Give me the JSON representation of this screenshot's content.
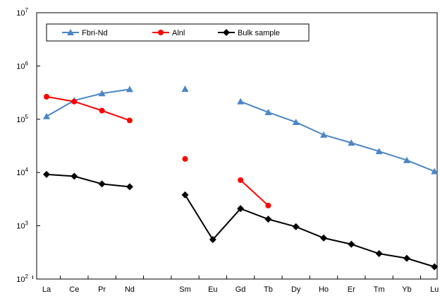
{
  "chart_data": {
    "type": "line",
    "y_scale": "log",
    "ylim": [
      100,
      10000000
    ],
    "y_ticks": [
      {
        "value": 100,
        "base": "10",
        "exp": "2"
      },
      {
        "value": 1000,
        "base": "10",
        "exp": "3"
      },
      {
        "value": 10000,
        "base": "10",
        "exp": "4"
      },
      {
        "value": 100000,
        "base": "10",
        "exp": "5"
      },
      {
        "value": 1000000,
        "base": "10",
        "exp": "6"
      },
      {
        "value": 10000000,
        "base": "10",
        "exp": "7"
      }
    ],
    "categories": [
      "La",
      "Ce",
      "Pr",
      "Nd",
      "",
      "Sm",
      "Eu",
      "Gd",
      "Tb",
      "Dy",
      "Ho",
      "Er",
      "Tm",
      "Yb",
      "Lu"
    ],
    "grid": false,
    "legend_position": "top-left",
    "series": [
      {
        "name": "Fbri-Nd",
        "color": "#4a86c8",
        "marker": "triangle",
        "values": [
          113000,
          225000,
          305000,
          365000,
          null,
          370000,
          null,
          215000,
          135000,
          88000,
          51000,
          36000,
          25000,
          17000,
          10500
        ]
      },
      {
        "name": "Alnl",
        "color": "#ff0000",
        "marker": "circle",
        "values": [
          265000,
          215000,
          145000,
          95000,
          null,
          18000,
          null,
          7200,
          2400,
          null,
          null,
          null,
          null,
          null,
          null
        ]
      },
      {
        "name": "Bulk sample",
        "color": "#000000",
        "marker": "diamond",
        "values": [
          9200,
          8500,
          6100,
          5400,
          null,
          3800,
          550,
          2100,
          1330,
          960,
          590,
          450,
          300,
          245,
          170
        ]
      }
    ]
  }
}
